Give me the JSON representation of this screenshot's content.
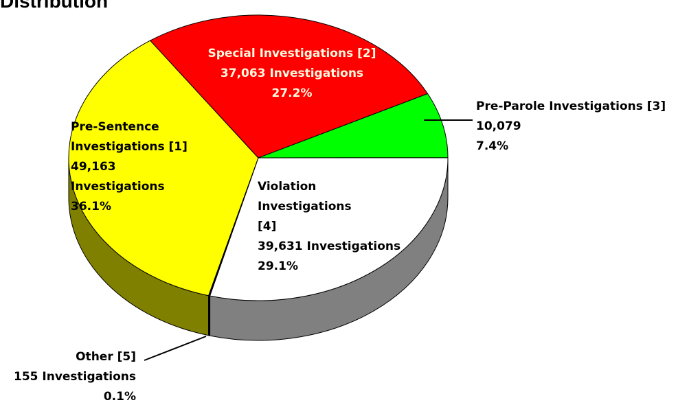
{
  "chart_data": {
    "type": "pie",
    "title": "Distribution",
    "categories": [
      "Pre-Sentence Investigations [1]",
      "Special Investigations [2]",
      "Pre-Parole Investigations [3]",
      "Violation Investigations [4]",
      "Other [5]"
    ],
    "values": [
      49163,
      37063,
      10079,
      39631,
      155
    ],
    "value_labels": [
      "49,163 Investigations",
      "37,063 Investigations",
      "10,079",
      "39,631 Investigations",
      "155 Investigations"
    ],
    "percentages": [
      36.1,
      27.2,
      7.4,
      29.1,
      0.1
    ],
    "percent_labels": [
      "36.1%",
      "27.2%",
      "7.4%",
      "29.1%",
      "0.1%"
    ],
    "colors": [
      "#ffff00",
      "#ff0000",
      "#00ff00",
      "#ffffff",
      "#000000"
    ]
  }
}
